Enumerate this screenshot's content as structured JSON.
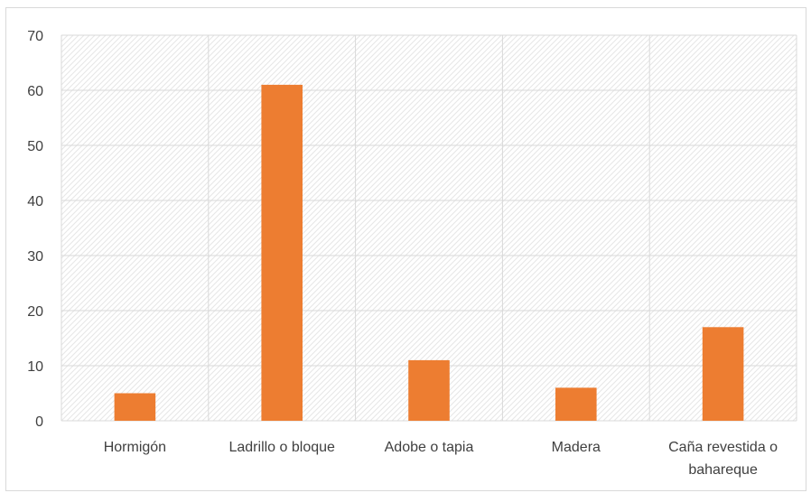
{
  "chart_data": {
    "type": "bar",
    "categories": [
      "Hormigón",
      "Ladrillo o bloque",
      "Adobe o tapia",
      "Madera",
      "Caña revestida o bahareque"
    ],
    "category_lines": [
      [
        "Hormigón"
      ],
      [
        "Ladrillo o bloque"
      ],
      [
        "Adobe o tapia"
      ],
      [
        "Madera"
      ],
      [
        "Caña revestida o",
        "bahareque"
      ]
    ],
    "series": [
      {
        "values": [
          5,
          61,
          11,
          6,
          17
        ]
      }
    ],
    "title": "",
    "xlabel": "",
    "ylabel": "",
    "ylim": [
      0,
      70
    ],
    "yticks": [
      0,
      10,
      20,
      30,
      40,
      50,
      60,
      70
    ],
    "grid": true,
    "plot_background": "hatched",
    "colors": {
      "bar": "#ED7D31",
      "grid": "#d9d9d9",
      "hatch": "#e6e6e6",
      "text": "#404040"
    }
  }
}
